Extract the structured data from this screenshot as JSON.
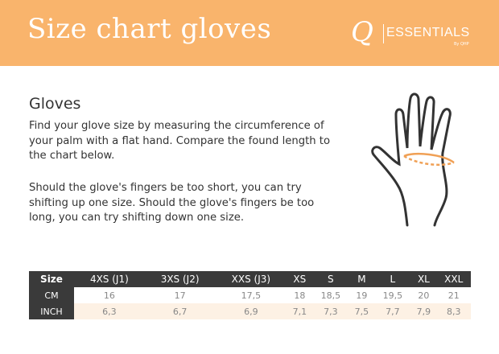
{
  "header": {
    "title": "Size chart gloves",
    "logo_text": "Q|ESSENTIALS by QHP",
    "brand_color": "#F9B46C"
  },
  "section": {
    "heading": "Gloves",
    "paragraph1": "Find your glove size by measuring the circumference of your palm with a flat hand. Compare the found length to the chart below.",
    "paragraph2": "Should the glove's fingers be too short, you can try shifting up one size. Should the glove's fingers be too long, you can try shifting down one size."
  },
  "illustration": {
    "icon": "hand-with-palm-measurement-icon"
  },
  "table": {
    "header": [
      "Size",
      "4XS (J1)",
      "3XS (J2)",
      "XXS (J3)",
      "XS",
      "S",
      "M",
      "L",
      "XL",
      "XXL"
    ],
    "rows": [
      {
        "label": "CM",
        "values": [
          "16",
          "17",
          "17,5",
          "18",
          "18,5",
          "19",
          "19,5",
          "20",
          "21"
        ]
      },
      {
        "label": "INCH",
        "values": [
          "6,3",
          "6,7",
          "6,9",
          "7,1",
          "7,3",
          "7,5",
          "7,7",
          "7,9",
          "8,3"
        ]
      }
    ]
  }
}
